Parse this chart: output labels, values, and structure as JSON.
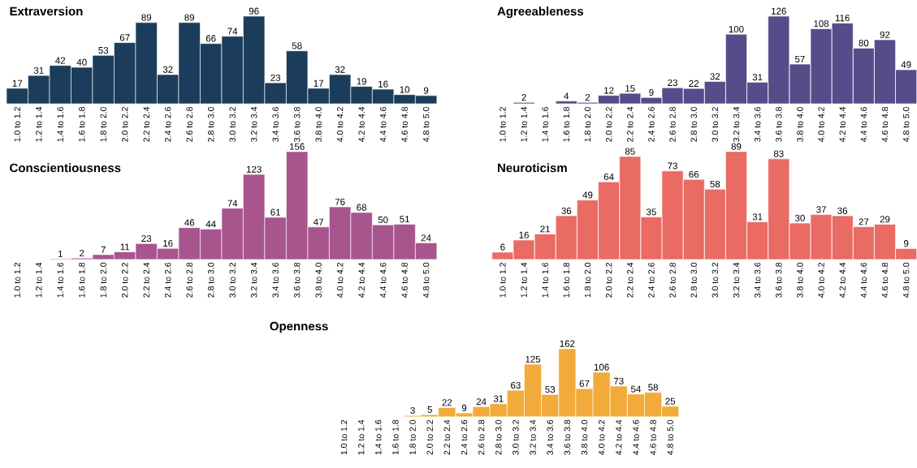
{
  "chart_data": [
    {
      "type": "bar",
      "title": "Extraversion",
      "categories": [
        "1.0 to 1.2",
        "1.2 to 1.4",
        "1.4 to 1.6",
        "1.6 to 1.8",
        "1.8 to 2.0",
        "2.0 to 2.2",
        "2.2 to 2.4",
        "2.4 to 2.6",
        "2.6 to 2.8",
        "2.8 to 3.0",
        "3.0 to 3.2",
        "3.2 to 3.4",
        "3.4 to 3.6",
        "3.6 to 3.8",
        "3.8 to 4.0",
        "4.0 to 4.2",
        "4.2 to 4.4",
        "4.4 to 4.6",
        "4.6 to 4.8",
        "4.8 to 5.0"
      ],
      "values": [
        17,
        31,
        42,
        40,
        53,
        67,
        89,
        32,
        89,
        66,
        74,
        96,
        23,
        58,
        17,
        32,
        19,
        16,
        10,
        9
      ],
      "color": "#1b3d5b",
      "data_labels": true
    },
    {
      "type": "bar",
      "title": "Agreeableness",
      "categories": [
        "1.0 to 1.2",
        "1.2 to 1.4",
        "1.4 to 1.6",
        "1.6 to 1.8",
        "1.8 to 2.0",
        "2.0 to 2.2",
        "2.2 to 2.4",
        "2.4 to 2.6",
        "2.6 to 2.8",
        "2.8 to 3.0",
        "3.0 to 3.2",
        "3.2 to 3.4",
        "3.4 to 3.6",
        "3.6 to 3.8",
        "3.8 to 4.0",
        "4.0 to 4.2",
        "4.2 to 4.4",
        "4.4 to 4.6",
        "4.6 to 4.8",
        "4.8 to 5.0"
      ],
      "values": [
        null,
        2,
        null,
        4,
        2,
        12,
        15,
        9,
        23,
        22,
        32,
        100,
        31,
        126,
        57,
        108,
        116,
        80,
        92,
        49
      ],
      "color": "#574b8a",
      "data_labels": true
    },
    {
      "type": "bar",
      "title": "Conscientiousness",
      "categories": [
        "1.0 to 1.2",
        "1.2 to 1.4",
        "1.4 to 1.6",
        "1.6 to 1.8",
        "1.8 to 2.0",
        "2.0 to 2.2",
        "2.2 to 2.4",
        "2.4 to 2.6",
        "2.6 to 2.8",
        "2.8 to 3.0",
        "3.0 to 3.2",
        "3.2 to 3.4",
        "3.4 to 3.6",
        "3.6 to 3.8",
        "3.8 to 4.0",
        "4.0 to 4.2",
        "4.2 to 4.4",
        "4.4 to 4.6",
        "4.6 to 4.8",
        "4.8 to 5.0"
      ],
      "values": [
        null,
        null,
        1,
        2,
        7,
        11,
        23,
        16,
        46,
        44,
        74,
        123,
        61,
        156,
        47,
        76,
        68,
        50,
        51,
        24
      ],
      "color": "#a8558e",
      "data_labels": true
    },
    {
      "type": "bar",
      "title": "Neuroticism",
      "categories": [
        "1.0 to 1.2",
        "1.2 to 1.4",
        "1.4 to 1.6",
        "1.6 to 1.8",
        "1.8 to 2.0",
        "2.0 to 2.2",
        "2.2 to 2.4",
        "2.4 to 2.6",
        "2.6 to 2.8",
        "2.8 to 3.0",
        "3.0 to 3.2",
        "3.2 to 3.4",
        "3.4 to 3.6",
        "3.6 to 3.8",
        "3.8 to 4.0",
        "4.0 to 4.2",
        "4.2 to 4.4",
        "4.4 to 4.6",
        "4.6 to 4.8",
        "4.8 to 5.0"
      ],
      "values": [
        6,
        16,
        21,
        36,
        49,
        64,
        85,
        35,
        73,
        66,
        58,
        89,
        31,
        83,
        30,
        37,
        36,
        27,
        29,
        9
      ],
      "color": "#ea6a64",
      "data_labels": true
    },
    {
      "type": "bar",
      "title": "Openness",
      "categories": [
        "1.0 to 1.2",
        "1.2 to 1.4",
        "1.4 to 1.6",
        "1.6 to 1.8",
        "1.8 to 2.0",
        "2.0 to 2.2",
        "2.2 to 2.4",
        "2.4 to 2.6",
        "2.6 to 2.8",
        "2.8 to 3.0",
        "3.0 to 3.2",
        "3.2 to 3.4",
        "3.4 to 3.6",
        "3.6 to 3.8",
        "3.8 to 4.0",
        "4.0 to 4.2",
        "4.2 to 4.4",
        "4.4 to 4.6",
        "4.6 to 4.8",
        "4.8 to 5.0"
      ],
      "values": [
        null,
        null,
        null,
        null,
        3,
        5,
        22,
        9,
        24,
        31,
        63,
        125,
        53,
        162,
        67,
        106,
        73,
        54,
        58,
        25
      ],
      "color": "#f2ab3b",
      "data_labels": true
    }
  ]
}
